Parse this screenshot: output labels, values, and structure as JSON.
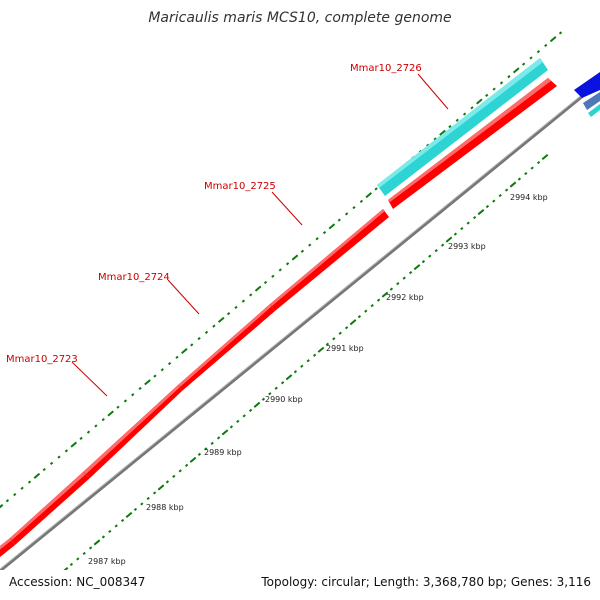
{
  "title": "Maricaulis maris MCS10, complete genome",
  "footer": {
    "accession": "Accession: NC_008347",
    "summary": "Topology: circular; Length: 3,368,780 bp; Genes: 3,116"
  },
  "colors": {
    "background": "#ffffff",
    "gene_forward": "#ff0000",
    "gene_reverse": "#2ed3d3",
    "gene_blue": "#0a12e0",
    "gene_steelblue": "#4f78b8",
    "backbone": "#777777",
    "tick": "#0b7a0b",
    "label_text": "#cc0000",
    "scale_text": "#222222"
  },
  "gene_labels": [
    {
      "name": "Mmar10_2723"
    },
    {
      "name": "Mmar10_2724"
    },
    {
      "name": "Mmar10_2725"
    },
    {
      "name": "Mmar10_2726"
    }
  ],
  "scale_labels": [
    "2987 kbp",
    "2988 kbp",
    "2989 kbp",
    "2990 kbp",
    "2991 kbp",
    "2992 kbp",
    "2993 kbp",
    "2994 kbp"
  ]
}
